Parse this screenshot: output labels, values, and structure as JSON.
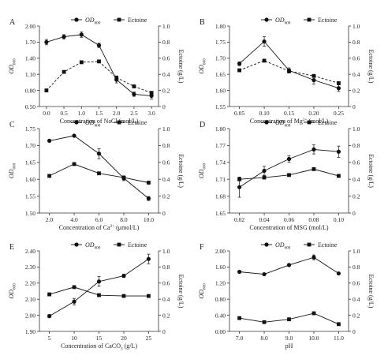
{
  "chart_data": [
    {
      "type": "line",
      "panel": "A",
      "xlabel": "Concentration of NaCl (mol/L)",
      "ylabel": "OD600",
      "y2label": "Ectoine (g/L)",
      "x": [
        0.0,
        0.5,
        1.0,
        1.5,
        2.0,
        2.5,
        3.0
      ],
      "xticks": [
        "0.0",
        "0.5",
        "1.0",
        "1.5",
        "2.0",
        "2.5",
        "3.0"
      ],
      "xlim": [
        -0.2,
        3.2
      ],
      "ylim": [
        0.5,
        2.0
      ],
      "yticks": [
        "0.50",
        "0.80",
        "1.10",
        "1.40",
        "1.70",
        "2.00"
      ],
      "y2lim": [
        0,
        1.0
      ],
      "y2ticks": [
        "0",
        "0.2",
        "0.4",
        "0.6",
        "0.8",
        "1.0"
      ],
      "legend": [
        "OD600",
        "Ectoine"
      ],
      "series": [
        {
          "name": "OD600",
          "axis": "left",
          "marker": "circle",
          "dash": "none",
          "values": [
            1.7,
            1.8,
            1.84,
            1.64,
            1.0,
            0.73,
            0.7
          ],
          "errors": [
            0.05,
            0.04,
            0.05,
            0.04,
            0.06,
            0.04,
            0.06
          ]
        },
        {
          "name": "Ectoine",
          "axis": "right",
          "marker": "square",
          "dash": "dashed",
          "values": [
            0.2,
            0.43,
            0.55,
            0.56,
            0.36,
            0.25,
            0.17
          ]
        }
      ]
    },
    {
      "type": "line",
      "panel": "B",
      "xlabel": "Concentration of Mg2+ (mol/L)",
      "ylabel": "OD600",
      "y2label": "Ectoine (g/L)",
      "x": [
        0.05,
        0.1,
        0.15,
        0.2,
        0.25
      ],
      "xticks": [
        "0.05",
        "0.10",
        "0.15",
        "0.20",
        "0.25"
      ],
      "xlim": [
        0.03,
        0.27
      ],
      "ylim": [
        1.55,
        1.8
      ],
      "yticks": [
        "1.55",
        "1.60",
        "1.65",
        "1.70",
        "1.75",
        "1.80"
      ],
      "y2lim": [
        0,
        1.0
      ],
      "y2ticks": [
        "0",
        "0.2",
        "0.4",
        "0.6",
        "0.8",
        "1.0"
      ],
      "legend": [
        "OD600",
        "Ectoine"
      ],
      "series": [
        {
          "name": "OD600",
          "axis": "left",
          "marker": "circle",
          "dash": "none",
          "values": [
            1.683,
            1.752,
            1.662,
            1.632,
            1.607
          ],
          "errors": [
            0.006,
            0.015,
            0.008,
            0.012,
            0.01
          ]
        },
        {
          "name": "Ectoine",
          "axis": "right",
          "marker": "square",
          "dash": "dashed",
          "values": [
            0.45,
            0.57,
            0.44,
            0.38,
            0.29
          ]
        }
      ]
    },
    {
      "type": "line",
      "panel": "C",
      "xlabel": "Concentration of Ca2+ (μmol/L)",
      "ylabel": "OD600",
      "y2label": "Ectoine (g/L)",
      "x": [
        2.0,
        4.0,
        6.0,
        8.0,
        10.0
      ],
      "xticks": [
        "2.0",
        "4.0",
        "6.0",
        "8.0",
        "10.0"
      ],
      "xlim": [
        1.2,
        10.8
      ],
      "ylim": [
        1.5,
        1.75
      ],
      "yticks": [
        "1.50",
        "1.55",
        "1.60",
        "1.65",
        "1.70",
        "1.75"
      ],
      "y2lim": [
        0,
        1.0
      ],
      "y2ticks": [
        "0",
        "0.2",
        "0.4",
        "0.6",
        "0.8",
        "1.0"
      ],
      "legend": [
        "OD600",
        "Ectoine"
      ],
      "series": [
        {
          "name": "OD600",
          "axis": "left",
          "marker": "circle",
          "dash": "none",
          "values": [
            1.714,
            1.729,
            1.676,
            1.603,
            1.543
          ],
          "errors": [
            0.003,
            0.003,
            0.015,
            0.007,
            0.006
          ]
        },
        {
          "name": "Ectoine",
          "axis": "right",
          "marker": "square",
          "dash": "none",
          "values": [
            0.44,
            0.58,
            0.47,
            0.42,
            0.36
          ]
        }
      ]
    },
    {
      "type": "line",
      "panel": "D",
      "xlabel": "Concentration of MSG (mol/L)",
      "ylabel": "OD600",
      "y2label": "Ectoine (g/L)",
      "x": [
        0.02,
        0.04,
        0.06,
        0.08,
        0.1
      ],
      "xticks": [
        "0.02",
        "0.04",
        "0.06",
        "0.08",
        "0.10"
      ],
      "xlim": [
        0.012,
        0.108
      ],
      "ylim": [
        1.65,
        1.8
      ],
      "yticks": [
        "1.65",
        "1.68",
        "1.71",
        "1.74",
        "1.77",
        "1.80"
      ],
      "y2lim": [
        0,
        1.0
      ],
      "y2ticks": [
        "0",
        "0.2",
        "0.4",
        "0.6",
        "0.8",
        "1.0"
      ],
      "legend": [
        "OD600",
        "Ectoine"
      ],
      "series": [
        {
          "name": "OD600",
          "axis": "left",
          "marker": "circle",
          "dash": "none",
          "values": [
            1.696,
            1.725,
            1.746,
            1.763,
            1.759
          ],
          "errors": [
            0.018,
            0.008,
            0.006,
            0.008,
            0.01
          ]
        },
        {
          "name": "Ectoine",
          "axis": "right",
          "marker": "square",
          "dash": "none",
          "values": [
            0.4,
            0.42,
            0.45,
            0.52,
            0.44
          ]
        }
      ]
    },
    {
      "type": "line",
      "panel": "E",
      "xlabel": "Concentration of CaCO3 (g/L)",
      "ylabel": "OD600",
      "y2label": "Ectoine (g/L)",
      "x": [
        5,
        10,
        15,
        20,
        25
      ],
      "xticks": [
        "5",
        "10",
        "15",
        "20",
        "25"
      ],
      "xlim": [
        3,
        27
      ],
      "ylim": [
        1.9,
        2.4
      ],
      "yticks": [
        "1.90",
        "2.00",
        "2.10",
        "2.20",
        "2.30",
        "2.40"
      ],
      "y2lim": [
        0,
        1.0
      ],
      "y2ticks": [
        "0",
        "0.2",
        "0.4",
        "0.6",
        "0.8",
        "1.0"
      ],
      "legend": [
        "OD600",
        "Ectoine"
      ],
      "series": [
        {
          "name": "OD600",
          "axis": "left",
          "marker": "circle",
          "dash": "none",
          "values": [
            1.995,
            2.085,
            2.21,
            2.245,
            2.35
          ],
          "errors": [
            0.01,
            0.02,
            0.03,
            0.01,
            0.03
          ]
        },
        {
          "name": "Ectoine",
          "axis": "right",
          "marker": "square",
          "dash": "none",
          "values": [
            0.46,
            0.55,
            0.45,
            0.44,
            0.44
          ]
        }
      ]
    },
    {
      "type": "line",
      "panel": "F",
      "xlabel": "pH",
      "ylabel": "OD600",
      "y2label": "Ectoine (g/L)",
      "x": [
        7.0,
        8.0,
        9.0,
        10.0,
        11.0
      ],
      "xticks": [
        "7.0",
        "8.0",
        "9.0",
        "10.0",
        "11.0"
      ],
      "xlim": [
        6.6,
        11.4
      ],
      "ylim": [
        0.0,
        2.0
      ],
      "yticks": [
        "0.00",
        "0.40",
        "0.80",
        "1.20",
        "1.60",
        "2.00"
      ],
      "y2lim": [
        0,
        1.0
      ],
      "y2ticks": [
        "0",
        "0.2",
        "0.4",
        "0.6",
        "0.8",
        "1.0"
      ],
      "legend": [
        "OD600",
        "Ectoine"
      ],
      "series": [
        {
          "name": "OD600",
          "axis": "left",
          "marker": "circle",
          "dash": "none",
          "values": [
            1.48,
            1.42,
            1.65,
            1.84,
            1.44
          ],
          "errors": [
            0.02,
            0.02,
            0.03,
            0.06,
            0.02
          ]
        },
        {
          "name": "Ectoine",
          "axis": "right",
          "marker": "square",
          "dash": "none",
          "values": [
            0.165,
            0.115,
            0.15,
            0.225,
            0.09
          ]
        }
      ]
    }
  ]
}
